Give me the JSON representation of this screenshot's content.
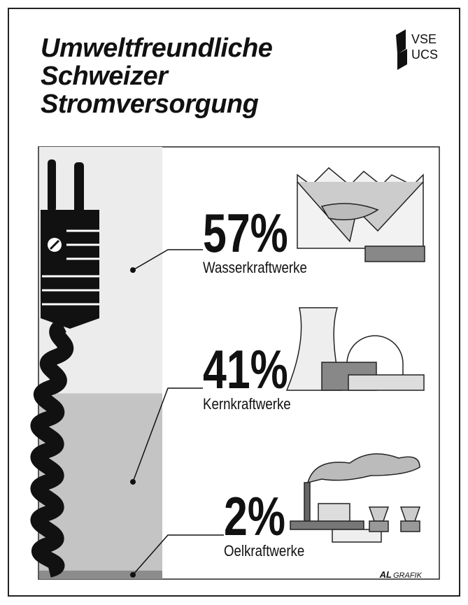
{
  "chart_data": {
    "type": "stacked_column",
    "title": "Umweltfreundliche Schweizer Stromversorgung",
    "logo": [
      "VSE",
      "UCS"
    ],
    "credit": [
      "AL",
      "GRAFIK"
    ],
    "ylim": [
      0,
      100
    ],
    "series": [
      {
        "name": "Wasserkraftwerke",
        "color": "#ececec",
        "values": [
          57
        ],
        "value_labels": [
          "57%"
        ]
      },
      {
        "name": "Kernkraftwerke",
        "color": "#c4c4c4",
        "values": [
          41
        ],
        "value_labels": [
          "41%"
        ]
      },
      {
        "name": "Oelkraftwerke",
        "color": "#8c8c8c",
        "values": [
          2
        ],
        "value_labels": [
          "2%"
        ]
      }
    ]
  }
}
